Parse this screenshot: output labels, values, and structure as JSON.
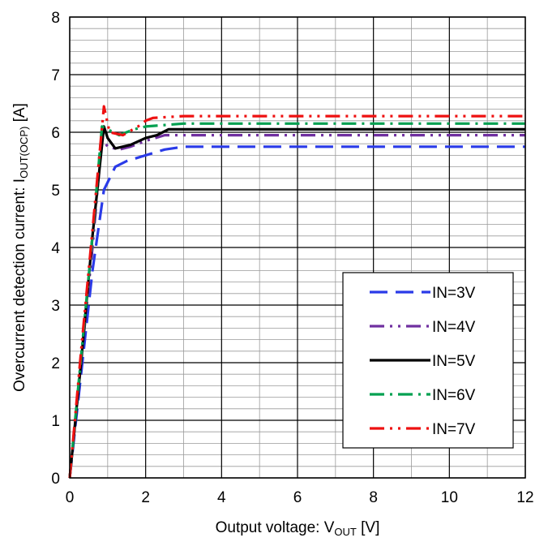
{
  "chart_data": {
    "type": "line",
    "xlabel": {
      "main": "Output voltage: V",
      "sub": "OUT",
      "unit": " [V]"
    },
    "ylabel": {
      "main": "Overcurrent detection current: I",
      "sub": "OUT(OCP)",
      "unit": " [A]"
    },
    "xlim": [
      0,
      12
    ],
    "ylim": [
      0,
      8
    ],
    "x_ticks": [
      "0",
      "2",
      "4",
      "6",
      "8",
      "10",
      "12"
    ],
    "y_ticks": [
      "0",
      "1",
      "2",
      "3",
      "4",
      "5",
      "6",
      "7",
      "8"
    ],
    "grid": true,
    "legend_position": "bottom-right",
    "series": [
      {
        "name": "IN=3V",
        "color": "#2a3be8",
        "style": "dash",
        "x": [
          0,
          0.3,
          0.6,
          0.9,
          1.2,
          1.5,
          2.0,
          2.5,
          3.0,
          4.0,
          6.0,
          8.0,
          10.0,
          12.0
        ],
        "y": [
          0,
          1.8,
          3.6,
          5.0,
          5.4,
          5.5,
          5.6,
          5.7,
          5.75,
          5.75,
          5.75,
          5.75,
          5.75,
          5.75
        ]
      },
      {
        "name": "IN=4V",
        "color": "#7030a0",
        "style": "dash-dot-dot",
        "x": [
          0,
          0.3,
          0.6,
          0.85,
          1.0,
          1.3,
          1.6,
          2.0,
          2.5,
          3.0,
          6.0,
          12.0
        ],
        "y": [
          0,
          2.0,
          4.0,
          5.9,
          5.75,
          5.7,
          5.75,
          5.85,
          5.95,
          5.95,
          5.95,
          5.95
        ]
      },
      {
        "name": "IN=5V",
        "color": "#000000",
        "style": "solid",
        "x": [
          0,
          0.3,
          0.6,
          0.9,
          1.0,
          1.2,
          1.6,
          2.0,
          2.3,
          2.6,
          3.0,
          6.0,
          12.0
        ],
        "y": [
          0,
          2.0,
          4.2,
          6.1,
          5.9,
          5.72,
          5.78,
          5.9,
          5.95,
          6.05,
          6.05,
          6.05,
          6.05
        ]
      },
      {
        "name": "IN=6V",
        "color": "#00a050",
        "style": "dash-dot",
        "x": [
          0,
          0.3,
          0.6,
          0.85,
          1.0,
          1.3,
          1.7,
          2.0,
          3.0,
          6.0,
          12.0
        ],
        "y": [
          0,
          2.1,
          4.2,
          6.1,
          6.05,
          5.95,
          6.05,
          6.1,
          6.15,
          6.15,
          6.15
        ]
      },
      {
        "name": "IN=7V",
        "color": "#ee1111",
        "style": "dash-dot-dot",
        "x": [
          0,
          0.3,
          0.6,
          0.9,
          1.05,
          1.4,
          1.8,
          2.0,
          2.2,
          3.0,
          6.0,
          12.0
        ],
        "y": [
          0,
          2.2,
          4.3,
          6.45,
          6.0,
          5.95,
          6.1,
          6.2,
          6.25,
          6.28,
          6.28,
          6.28
        ]
      }
    ]
  }
}
